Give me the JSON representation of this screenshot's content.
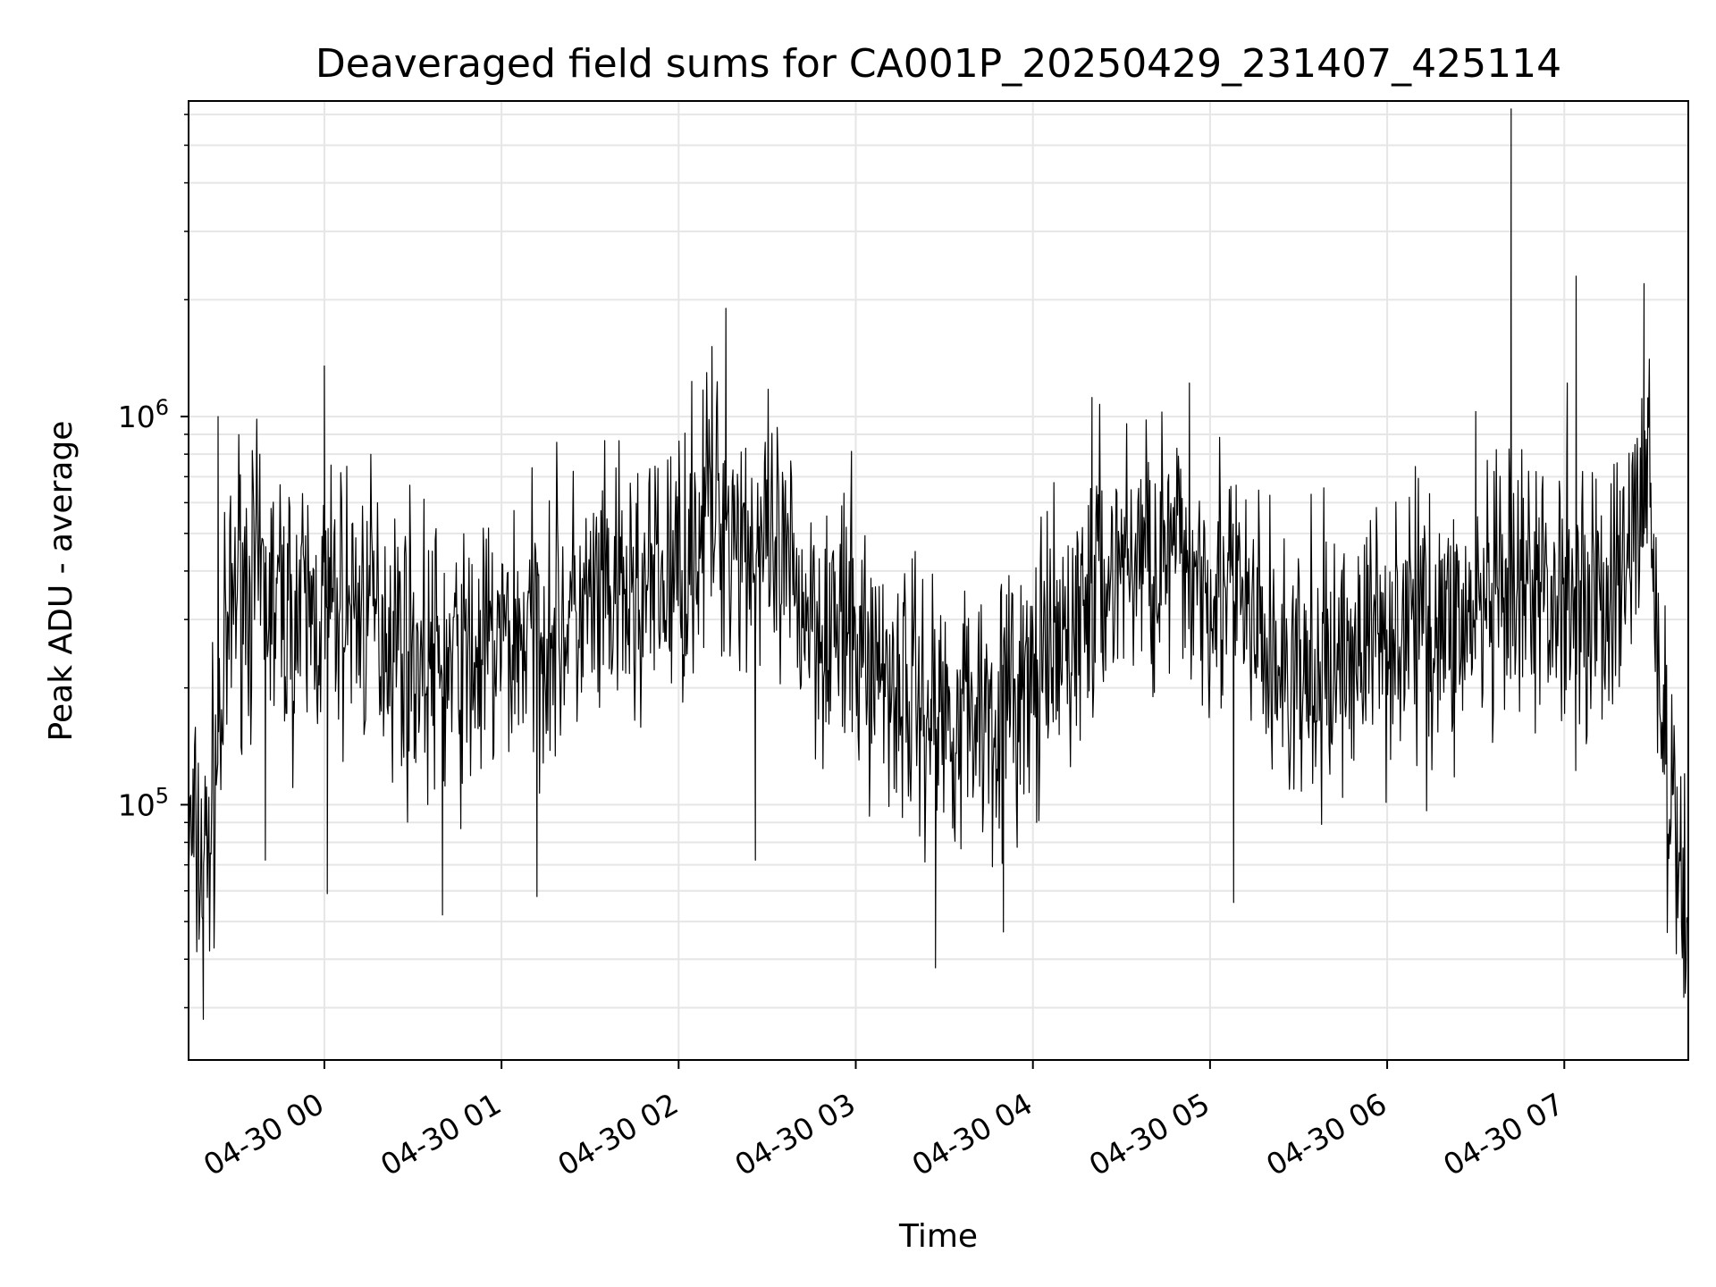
{
  "chart_data": {
    "type": "line",
    "title": "Deaveraged field sums for CA001P_20250429_231407_425114",
    "xlabel": "Time",
    "ylabel": "Peak ADU - average",
    "y_scale": "log",
    "grid": true,
    "legend": "none",
    "line_color": "#000000",
    "xlim": [
      "2025-04-29 23:14",
      "2025-04-30 07:42"
    ],
    "ylim": [
      22000,
      6500000
    ],
    "x_ticks": [
      {
        "value": "2025-04-30 00:00",
        "label": "04-30 00"
      },
      {
        "value": "2025-04-30 01:00",
        "label": "04-30 01"
      },
      {
        "value": "2025-04-30 02:00",
        "label": "04-30 02"
      },
      {
        "value": "2025-04-30 03:00",
        "label": "04-30 03"
      },
      {
        "value": "2025-04-30 04:00",
        "label": "04-30 04"
      },
      {
        "value": "2025-04-30 05:00",
        "label": "04-30 05"
      },
      {
        "value": "2025-04-30 06:00",
        "label": "04-30 06"
      },
      {
        "value": "2025-04-30 07:00",
        "label": "04-30 07"
      }
    ],
    "y_ticks": [
      {
        "value": 100000,
        "base": "10",
        "exp": "5"
      },
      {
        "value": 1000000,
        "base": "10",
        "exp": "6"
      }
    ],
    "series": [
      {
        "x": [
          "2025-04-29 23:14",
          "2025-04-29 23:20",
          "2025-04-29 23:30",
          "2025-04-29 23:40",
          "2025-04-29 23:50",
          "2025-04-30 00:00",
          "2025-04-30 00:10",
          "2025-04-30 00:20",
          "2025-04-30 00:30",
          "2025-04-30 00:40",
          "2025-04-30 00:50",
          "2025-04-30 01:00",
          "2025-04-30 01:10",
          "2025-04-30 01:20",
          "2025-04-30 01:30",
          "2025-04-30 01:40",
          "2025-04-30 01:50",
          "2025-04-30 02:00",
          "2025-04-30 02:10",
          "2025-04-30 02:20",
          "2025-04-30 02:30",
          "2025-04-30 02:40",
          "2025-04-30 02:50",
          "2025-04-30 03:00",
          "2025-04-30 03:10",
          "2025-04-30 03:20",
          "2025-04-30 03:30",
          "2025-04-30 03:40",
          "2025-04-30 03:50",
          "2025-04-30 04:00",
          "2025-04-30 04:10",
          "2025-04-30 04:20",
          "2025-04-30 04:30",
          "2025-04-30 04:40",
          "2025-04-30 04:50",
          "2025-04-30 05:00",
          "2025-04-30 05:10",
          "2025-04-30 05:20",
          "2025-04-30 05:30",
          "2025-04-30 05:40",
          "2025-04-30 05:50",
          "2025-04-30 06:00",
          "2025-04-30 06:10",
          "2025-04-30 06:20",
          "2025-04-30 06:30",
          "2025-04-30 06:40",
          "2025-04-30 06:50",
          "2025-04-30 07:00",
          "2025-04-30 07:10",
          "2025-04-30 07:20",
          "2025-04-30 07:28",
          "2025-04-30 07:35",
          "2025-04-30 07:42"
        ],
        "values": [
          80000,
          70000,
          400000,
          350000,
          300000,
          320000,
          330000,
          300000,
          250000,
          220000,
          230000,
          260000,
          280000,
          300000,
          310000,
          330000,
          350000,
          400000,
          600000,
          520000,
          420000,
          350000,
          300000,
          260000,
          220000,
          190000,
          170000,
          180000,
          180000,
          200000,
          250000,
          350000,
          430000,
          450000,
          420000,
          400000,
          330000,
          240000,
          200000,
          220000,
          260000,
          290000,
          300000,
          290000,
          300000,
          320000,
          350000,
          360000,
          340000,
          360000,
          800000,
          100000,
          50000
        ],
        "noise_pct": 45,
        "spikes": [
          {
            "x": "2025-04-29 23:19",
            "value": 28000
          },
          {
            "x": "2025-04-29 23:24",
            "value": 1000000
          },
          {
            "x": "2025-04-29 23:40",
            "value": 72000
          },
          {
            "x": "2025-04-30 00:00",
            "value": 1350000
          },
          {
            "x": "2025-04-30 00:01",
            "value": 59000
          },
          {
            "x": "2025-04-30 00:40",
            "value": 52000
          },
          {
            "x": "2025-04-30 01:12",
            "value": 58000
          },
          {
            "x": "2025-04-30 02:16",
            "value": 1900000
          },
          {
            "x": "2025-04-30 02:26",
            "value": 72000
          },
          {
            "x": "2025-04-30 03:27",
            "value": 38000
          },
          {
            "x": "2025-04-30 03:50",
            "value": 47000
          },
          {
            "x": "2025-04-30 04:20",
            "value": 1120000
          },
          {
            "x": "2025-04-30 04:53",
            "value": 1220000
          },
          {
            "x": "2025-04-30 05:08",
            "value": 56000
          },
          {
            "x": "2025-04-30 06:30",
            "value": 1030000
          },
          {
            "x": "2025-04-30 06:42",
            "value": 6200000
          },
          {
            "x": "2025-04-30 06:42",
            "value": 2000000
          },
          {
            "x": "2025-04-30 07:01",
            "value": 1220000
          },
          {
            "x": "2025-04-30 07:04",
            "value": 2300000
          },
          {
            "x": "2025-04-30 07:27",
            "value": 2200000
          },
          {
            "x": "2025-04-30 07:40",
            "value": 42000
          }
        ]
      }
    ]
  }
}
